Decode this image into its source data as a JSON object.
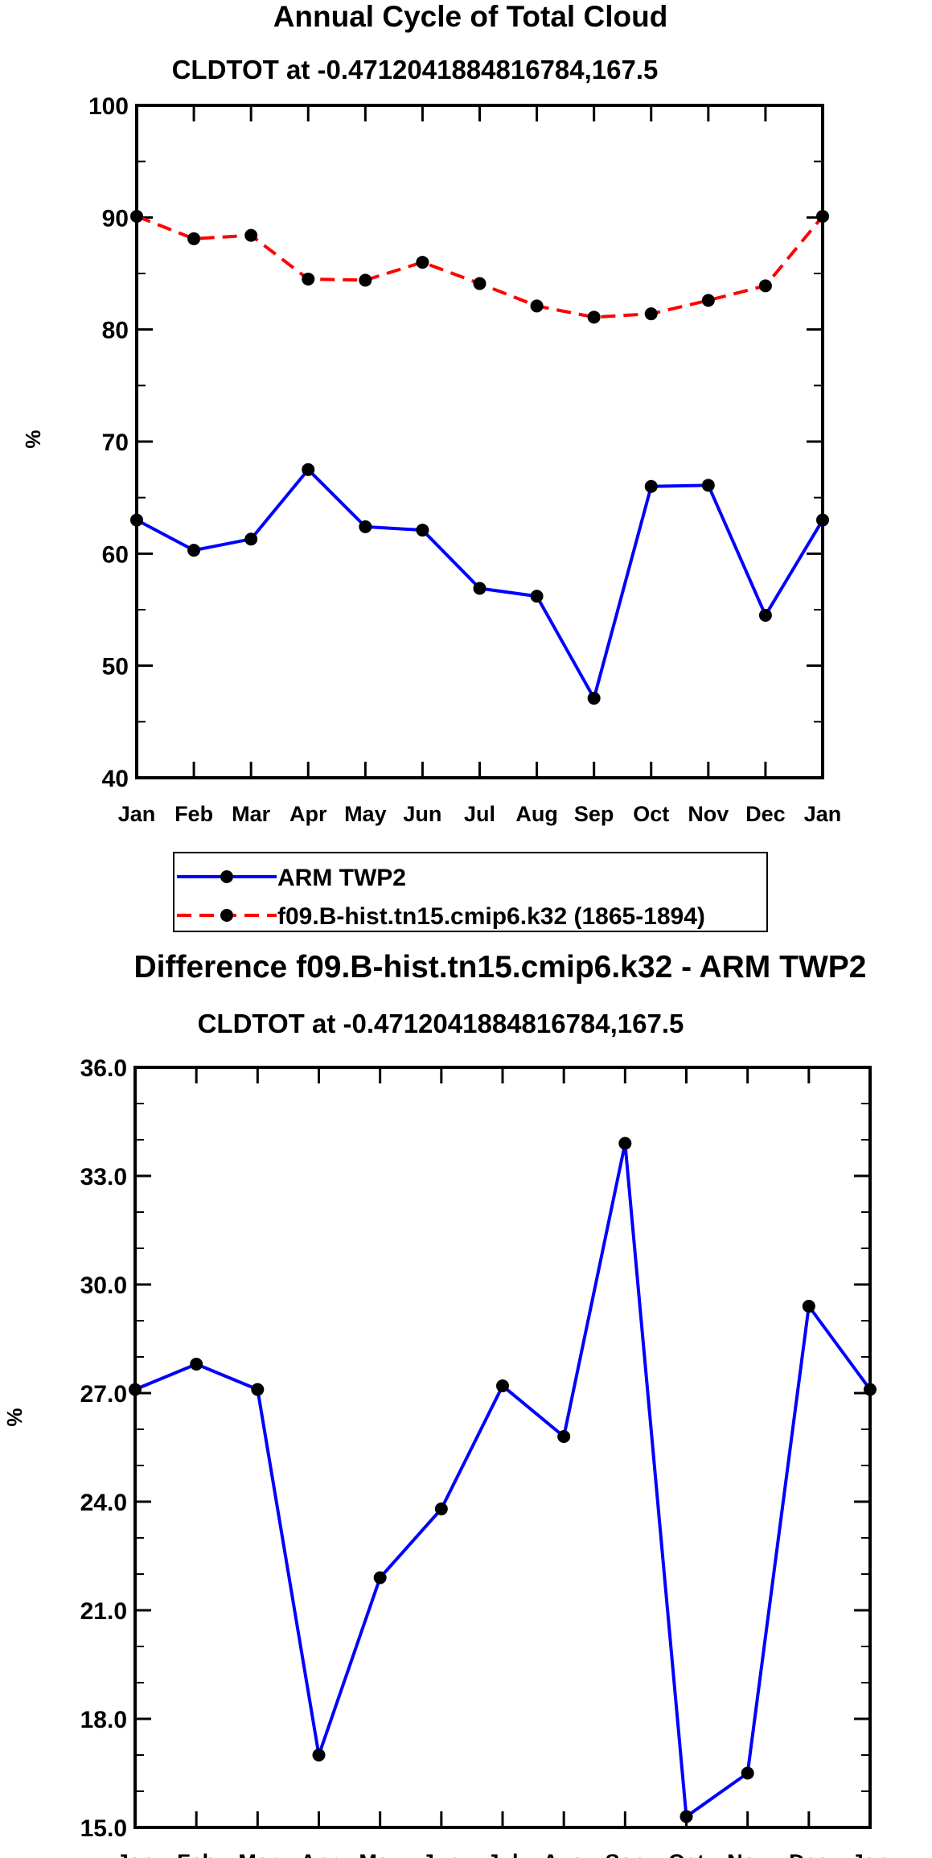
{
  "chart_data": [
    {
      "type": "line",
      "title": "Annual Cycle of Total Cloud",
      "subtitle": "CLDTOT at -0.4712041884816784,167.5",
      "xlabel": "",
      "ylabel": "%",
      "categories": [
        "Jan",
        "Feb",
        "Mar",
        "Apr",
        "May",
        "Jun",
        "Jul",
        "Aug",
        "Sep",
        "Oct",
        "Nov",
        "Dec",
        "Jan"
      ],
      "ylim": [
        40,
        100
      ],
      "yticks": [
        40,
        50,
        60,
        70,
        80,
        90,
        100
      ],
      "ytick_labels": [
        "40",
        "50",
        "60",
        "70",
        "80",
        "90",
        "100"
      ],
      "grid": false,
      "series": [
        {
          "name": "ARM TWP2",
          "color": "#0000ff",
          "dash": "solid",
          "values": [
            63.0,
            60.3,
            61.3,
            67.5,
            62.4,
            62.1,
            56.9,
            56.2,
            47.1,
            66.0,
            66.1,
            54.5,
            63.0
          ]
        },
        {
          "name": "f09.B-hist.tn15.cmip6.k32 (1865-1894)",
          "color": "#ff0000",
          "dash": "dashed",
          "values": [
            90.1,
            88.1,
            88.4,
            84.5,
            84.4,
            86.0,
            84.1,
            82.1,
            81.1,
            81.4,
            82.6,
            83.9,
            90.1
          ]
        }
      ],
      "legend": {
        "placement": "below-left"
      }
    },
    {
      "type": "line",
      "title": "Difference f09.B-hist.tn15.cmip6.k32 - ARM TWP2",
      "subtitle": "CLDTOT at -0.4712041884816784,167.5",
      "xlabel": "",
      "ylabel": "%",
      "categories": [
        "Jan",
        "Feb",
        "Mar",
        "Apr",
        "May",
        "Jun",
        "Jul",
        "Aug",
        "Sep",
        "Oct",
        "Nov",
        "Dec",
        "Jan"
      ],
      "ylim": [
        15.0,
        36.0
      ],
      "yticks": [
        15.0,
        18.0,
        21.0,
        24.0,
        27.0,
        30.0,
        33.0,
        36.0
      ],
      "ytick_labels": [
        "15.0",
        "18.0",
        "21.0",
        "24.0",
        "27.0",
        "30.0",
        "33.0",
        "36.0"
      ],
      "grid": false,
      "series": [
        {
          "name": "Difference",
          "color": "#0000ff",
          "dash": "solid",
          "values": [
            27.1,
            27.8,
            27.1,
            17.0,
            21.9,
            23.8,
            27.2,
            25.8,
            33.9,
            15.3,
            16.5,
            29.4,
            27.1
          ]
        }
      ]
    }
  ]
}
